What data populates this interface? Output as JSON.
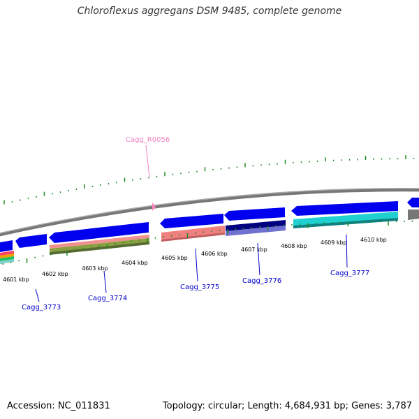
{
  "title": "Chloroflexus aggregans DSM 9485, complete genome",
  "footer": {
    "accession": "Accession: NC_011831",
    "stats": "Topology: circular; Length: 4,684,931 bp; Genes: 3,787"
  },
  "colors": {
    "backbone": "#888888",
    "cds_arrow": "#0000ee",
    "gc_ticks": "#228b22",
    "gene_label": "#0000cc",
    "rna_label": "#f080c0",
    "rna_marker": "#ff80c0"
  },
  "scale_labels": [
    "4601 kbp",
    "4602 kbp",
    "4603 kbp",
    "4604 kbp",
    "4605 kbp",
    "4606 kbp",
    "4607 kbp",
    "4608 kbp",
    "4609 kbp",
    "4610 kbp"
  ],
  "gene_labels": [
    "Cagg_3773",
    "Cagg_3774",
    "Cagg_3775",
    "Cagg_3776",
    "Cagg_3777"
  ],
  "rna_label": "Cagg_R0056"
}
